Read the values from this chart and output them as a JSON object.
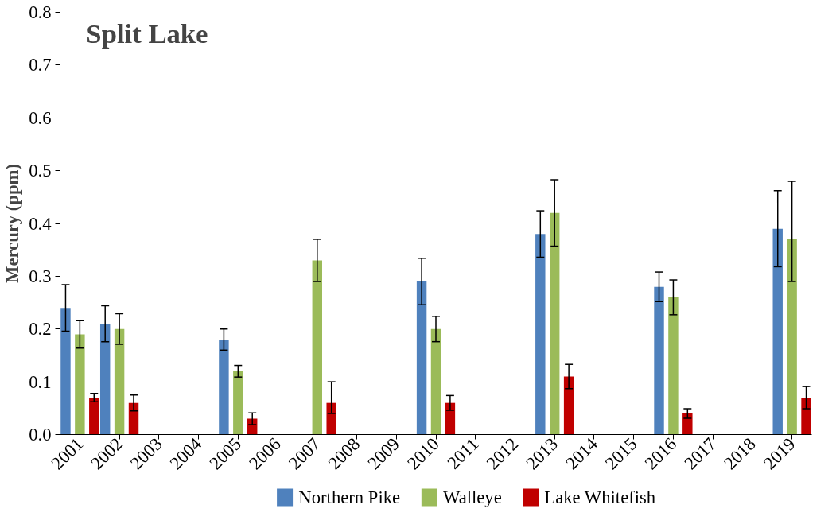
{
  "chart_data": {
    "type": "bar",
    "title": "Split Lake",
    "ylabel": "Mercury (ppm)",
    "categories": [
      "2001",
      "2002",
      "2003",
      "2004",
      "2005",
      "2006",
      "2007",
      "2008",
      "2009",
      "2010",
      "2011",
      "2012",
      "2013",
      "2014",
      "2015",
      "2016",
      "2017",
      "2018",
      "2019"
    ],
    "series": [
      {
        "name": "Northern Pike",
        "color": "#4f81bd",
        "values": [
          0.24,
          0.21,
          null,
          null,
          0.18,
          null,
          null,
          null,
          null,
          0.29,
          null,
          null,
          0.38,
          null,
          null,
          0.28,
          null,
          null,
          0.39
        ],
        "errors": [
          0.044,
          0.034,
          null,
          null,
          0.02,
          null,
          null,
          null,
          null,
          0.044,
          null,
          null,
          0.044,
          null,
          null,
          0.028,
          null,
          null,
          0.072
        ]
      },
      {
        "name": "Walleye",
        "color": "#9bbb59",
        "values": [
          0.19,
          0.2,
          null,
          null,
          0.12,
          null,
          0.33,
          null,
          null,
          0.2,
          null,
          null,
          0.42,
          null,
          null,
          0.26,
          null,
          null,
          0.37
        ],
        "errors": [
          0.026,
          0.029,
          null,
          null,
          0.011,
          null,
          0.04,
          null,
          null,
          0.024,
          null,
          null,
          0.063,
          null,
          null,
          0.033,
          null,
          null,
          [
            0.29,
            0.48
          ]
        ]
      },
      {
        "name": "Lake Whitefish",
        "color": "#c00000",
        "values": [
          0.07,
          0.06,
          null,
          null,
          0.03,
          null,
          0.06,
          null,
          null,
          0.06,
          null,
          null,
          0.11,
          null,
          null,
          0.04,
          null,
          null,
          0.07
        ],
        "errors": [
          0.008,
          0.015,
          null,
          null,
          0.011,
          null,
          [
            0.04,
            0.1
          ],
          null,
          null,
          0.014,
          null,
          null,
          0.023,
          null,
          null,
          0.009,
          null,
          null,
          0.021
        ]
      }
    ],
    "ylim": [
      0,
      0.8
    ],
    "yticks": [
      {
        "value": 0,
        "label": "0.0"
      },
      {
        "value": 0.1,
        "label": "0.1"
      },
      {
        "value": 0.2,
        "label": "0.2"
      },
      {
        "value": 0.3,
        "label": "0.3"
      },
      {
        "value": 0.4,
        "label": "0.4"
      },
      {
        "value": 0.5,
        "label": "0.5"
      },
      {
        "value": 0.6,
        "label": "0.6"
      },
      {
        "value": 0.7,
        "label": "0.7"
      },
      {
        "value": 0.8,
        "label": "0.8"
      }
    ],
    "grid": false,
    "legend": "bottom"
  }
}
